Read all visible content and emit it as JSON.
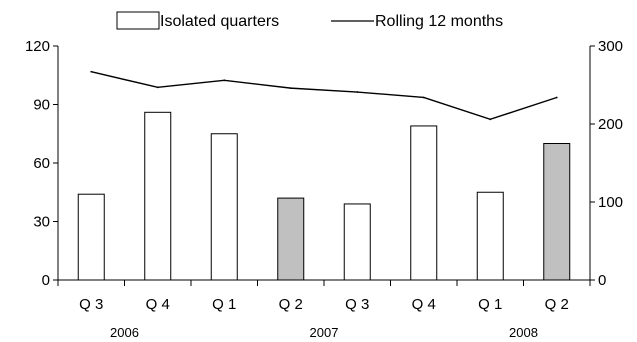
{
  "chart_data": {
    "type": "bar",
    "categories": [
      "Q 3",
      "Q 4",
      "Q 1",
      "Q 2",
      "Q 3",
      "Q 4",
      "Q 1",
      "Q 2"
    ],
    "year_groups": [
      {
        "label": "2006",
        "start": 0,
        "end": 1
      },
      {
        "label": "2007",
        "start": 2,
        "end": 5
      },
      {
        "label": "2008",
        "start": 6,
        "end": 7
      }
    ],
    "series": [
      {
        "name": "Isolated quarters",
        "type": "bar",
        "axis": "left",
        "values": [
          44,
          86,
          75,
          42,
          39,
          79,
          45,
          70
        ],
        "highlighted": [
          false,
          false,
          false,
          true,
          false,
          false,
          false,
          true
        ]
      },
      {
        "name": "Rolling 12 months",
        "type": "line",
        "axis": "right",
        "values": [
          267,
          247,
          256,
          246,
          241,
          234,
          206,
          234
        ]
      }
    ],
    "y_left": {
      "min": 0,
      "max": 120,
      "ticks": [
        0,
        30,
        60,
        90,
        120
      ]
    },
    "y_right": {
      "min": 0,
      "max": 300,
      "ticks": [
        0,
        100,
        200,
        300
      ]
    },
    "legend_position": "top-center",
    "grid": false,
    "colors": {
      "bar_fill": "#ffffff",
      "bar_highlight_fill": "#c0c0c0",
      "bar_stroke": "#000000",
      "line": "#000000"
    }
  }
}
